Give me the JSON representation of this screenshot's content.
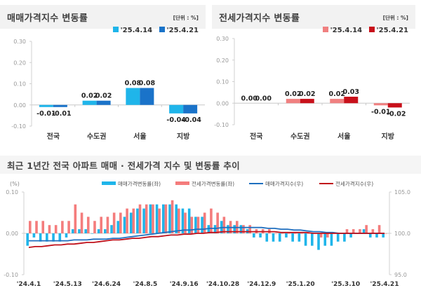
{
  "chart_data": [
    {
      "id": "sale",
      "type": "bar",
      "title": "매매가격지수 변동률",
      "unit_label": "[단위 : %]",
      "categories": [
        "전국",
        "수도권",
        "서울",
        "지방"
      ],
      "series": [
        {
          "name": "'25.4.14",
          "color": "#1fb5ea",
          "values": [
            -0.01,
            0.02,
            0.08,
            -0.04
          ],
          "labels": [
            "-0.01",
            "0.02",
            "0.08",
            "-0.04"
          ]
        },
        {
          "name": "'25.4.21",
          "color": "#1a73c9",
          "values": [
            -0.01,
            0.02,
            0.08,
            -0.04
          ],
          "labels": [
            "-0.01",
            "0.02",
            "0.08",
            "-0.04"
          ]
        }
      ],
      "yticks": [
        "0.30",
        "0.20",
        "0.10",
        "0.00",
        "-0.10"
      ],
      "ylim": [
        -0.1,
        0.3
      ]
    },
    {
      "id": "jeonse",
      "type": "bar",
      "title": "전세가격지수 변동률",
      "unit_label": "[단위 : %]",
      "categories": [
        "전국",
        "수도권",
        "서울",
        "지방"
      ],
      "series": [
        {
          "name": "'25.4.14",
          "color": "#f08080",
          "values": [
            0.0,
            0.02,
            0.02,
            -0.01
          ],
          "labels": [
            "0.00",
            "0.02",
            "0.02",
            "-0.01"
          ]
        },
        {
          "name": "'25.4.21",
          "color": "#c8101a",
          "values": [
            0.0,
            0.02,
            0.03,
            -0.02
          ],
          "labels": [
            "0.00",
            "0.02",
            "0.03",
            "-0.02"
          ]
        }
      ],
      "yticks": [
        "0.30",
        "0.20",
        "0.10",
        "0.00",
        "-0.10"
      ],
      "ylim": [
        -0.1,
        0.3
      ]
    },
    {
      "id": "trend",
      "type": "bar+line",
      "title": "최근 1년간 전국 아파트 매매 · 전세가격 지수 및 변동률 추이",
      "left_axis_label": "(%)",
      "left_yticks": [
        "0.10",
        "0.00",
        "-0.10"
      ],
      "left_ylim": [
        -0.1,
        0.1
      ],
      "right_yticks": [
        "105.0",
        "100.0",
        "95.0"
      ],
      "right_ylim": [
        95.0,
        105.0
      ],
      "x_tick_labels": [
        "'24.4.1",
        "'24.5.13",
        "'24.6.24",
        "'24.8.5",
        "'24.9.16",
        "'24.10.28",
        "'24.12.9",
        "'25.1.20",
        "'25.3.10",
        "'25.4.21"
      ],
      "x_tick_index": [
        0,
        6,
        12,
        18,
        24,
        30,
        36,
        42,
        49,
        55
      ],
      "series": [
        {
          "name": "매매가격변동률(좌)",
          "kind": "bar",
          "color": "#1fb5ea",
          "values": [
            -0.03,
            -0.01,
            -0.02,
            -0.02,
            -0.02,
            -0.02,
            -0.01,
            0.01,
            0.01,
            0.01,
            0.0,
            0.01,
            0.01,
            0.02,
            0.03,
            0.04,
            0.05,
            0.06,
            0.06,
            0.07,
            0.07,
            0.07,
            0.07,
            0.07,
            0.06,
            0.06,
            0.04,
            0.04,
            0.02,
            0.02,
            0.03,
            0.02,
            0.02,
            0.02,
            0.01,
            -0.01,
            -0.01,
            -0.02,
            -0.02,
            -0.02,
            -0.01,
            -0.02,
            -0.02,
            -0.03,
            -0.03,
            -0.04,
            -0.03,
            -0.03,
            -0.02,
            -0.02,
            -0.01,
            0.0,
            0.01,
            -0.01,
            -0.01,
            -0.01
          ]
        },
        {
          "name": "전세가격변동률(좌)",
          "kind": "bar",
          "color": "#f47c7c",
          "values": [
            0.03,
            0.03,
            0.03,
            0.02,
            0.02,
            0.03,
            0.03,
            0.07,
            0.05,
            0.04,
            0.03,
            0.04,
            0.04,
            0.05,
            0.05,
            0.06,
            0.06,
            0.07,
            0.07,
            0.07,
            0.06,
            0.07,
            0.08,
            0.06,
            0.05,
            0.04,
            0.04,
            0.05,
            0.06,
            0.05,
            0.04,
            0.03,
            0.03,
            0.02,
            0.02,
            0.01,
            0.01,
            0.01,
            0.0,
            0.0,
            0.0,
            0.0,
            0.0,
            0.0,
            0.0,
            -0.01,
            -0.01,
            0.0,
            0.0,
            0.01,
            0.01,
            0.01,
            0.02,
            0.01,
            0.02,
            0.0
          ]
        },
        {
          "name": "매매가격지수(우)",
          "kind": "line",
          "color": "#1f6fbf",
          "values": [
            99.1,
            99.1,
            99.1,
            99.1,
            99.1,
            99.1,
            99.1,
            99.2,
            99.2,
            99.2,
            99.3,
            99.3,
            99.3,
            99.4,
            99.4,
            99.5,
            99.6,
            99.7,
            99.8,
            99.9,
            100.0,
            100.1,
            100.2,
            100.3,
            100.4,
            100.4,
            100.5,
            100.5,
            100.6,
            100.6,
            100.7,
            100.7,
            100.7,
            100.7,
            100.7,
            100.7,
            100.7,
            100.6,
            100.6,
            100.5,
            100.5,
            100.4,
            100.4,
            100.3,
            100.2,
            100.2,
            100.1,
            100.1,
            100.0,
            100.0,
            100.0,
            100.0,
            100.0,
            100.0,
            100.0,
            100.0
          ]
        },
        {
          "name": "전세가격지수(우)",
          "kind": "line",
          "color": "#c0101a",
          "values": [
            98.3,
            98.4,
            98.4,
            98.5,
            98.6,
            98.6,
            98.7,
            98.7,
            98.8,
            98.9,
            98.9,
            99.0,
            99.1,
            99.2,
            99.2,
            99.3,
            99.4,
            99.4,
            99.5,
            99.6,
            99.6,
            99.7,
            99.8,
            99.8,
            99.9,
            99.9,
            100.0,
            100.0,
            100.1,
            100.1,
            100.2,
            100.2,
            100.2,
            100.2,
            100.2,
            100.2,
            100.2,
            100.2,
            100.2,
            100.1,
            100.1,
            100.1,
            100.1,
            100.1,
            100.0,
            100.0,
            100.0,
            100.0,
            100.0,
            100.0,
            100.0,
            100.0,
            100.0,
            100.0,
            100.0,
            100.0
          ]
        }
      ]
    }
  ]
}
